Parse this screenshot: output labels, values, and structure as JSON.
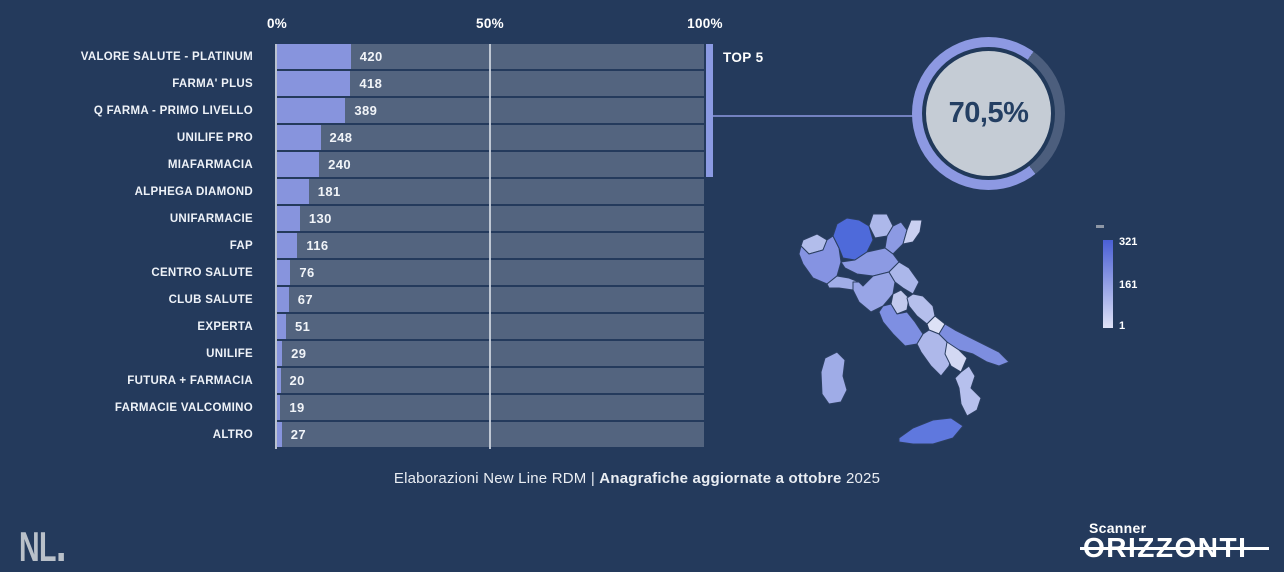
{
  "page": {
    "background": "#243a5c"
  },
  "colors": {
    "bar_fill": "#8794dd",
    "bar_track": "#53647f",
    "gridline": "#cbd2dd",
    "accent_periwinkle": "#8b9ae3",
    "donut_remainder": "#4c5e7d",
    "donut_inner": "#c5ccd5",
    "donut_text": "#243f63"
  },
  "chart_data": [
    {
      "type": "bar",
      "orientation": "horizontal",
      "categories": [
        "VALORE SALUTE - PLATINUM",
        "FARMA' PLUS",
        "Q FARMA - PRIMO LIVELLO",
        "UNILIFE PRO",
        "MIAFARMACIA",
        "ALPHEGA DIAMOND",
        "UNIFARMACIE",
        "FAP",
        "CENTRO SALUTE",
        "CLUB SALUTE",
        "EXPERTA",
        "UNILIFE",
        "FUTURA + FARMACIA",
        "FARMACIE VALCOMINO",
        "ALTRO"
      ],
      "values": [
        420,
        418,
        389,
        248,
        240,
        181,
        130,
        116,
        76,
        67,
        51,
        29,
        20,
        19,
        27
      ],
      "x_axis": {
        "unit": "percent-of-total",
        "range": [
          0,
          100
        ],
        "ticks": [
          "0%",
          "50%",
          "100%"
        ],
        "gridlines_pct": [
          0,
          50
        ]
      },
      "annotation": "TOP 5"
    },
    {
      "type": "pie",
      "style": "donut",
      "values": [
        {
          "name": "TOP 5",
          "value": 70.5
        },
        {
          "name": "remainder",
          "value": 29.5
        }
      ],
      "center_label": "70,5%",
      "remainder_start_deg": 36
    },
    {
      "type": "heatmap",
      "style": "choropleth-italy",
      "legend": {
        "labels": [
          "321",
          "161",
          "1"
        ],
        "null_marker": "-"
      },
      "regions": [
        {
          "id": "valle-daosta",
          "color": "#b2bdeb"
        },
        {
          "id": "piemonte",
          "color": "#8593e2"
        },
        {
          "id": "lombardia",
          "color": "#4e6ada"
        },
        {
          "id": "trentino-alto-adige",
          "color": "#adb8ea"
        },
        {
          "id": "veneto",
          "color": "#8c9ae3"
        },
        {
          "id": "friuli-venezia-giulia",
          "color": "#cad0f1"
        },
        {
          "id": "liguria",
          "color": "#a0ade7"
        },
        {
          "id": "emilia-romagna",
          "color": "#8c9ae3"
        },
        {
          "id": "toscana",
          "color": "#98a5e6"
        },
        {
          "id": "marche",
          "color": "#abb7ea"
        },
        {
          "id": "umbria",
          "color": "#c2caee"
        },
        {
          "id": "lazio",
          "color": "#7e8fe2"
        },
        {
          "id": "abruzzo",
          "color": "#b5bfec"
        },
        {
          "id": "molise",
          "color": "#dde1f6"
        },
        {
          "id": "campania",
          "color": "#aeb8ea"
        },
        {
          "id": "puglia",
          "color": "#7d8ee0"
        },
        {
          "id": "basilicata",
          "color": "#d3d8f3"
        },
        {
          "id": "calabria",
          "color": "#b6c0ed"
        },
        {
          "id": "sicilia",
          "color": "#5f78de"
        },
        {
          "id": "sardegna",
          "color": "#9face7"
        }
      ]
    }
  ],
  "footer": {
    "prefix": "Elaborazioni New Line RDM | ",
    "bold": "Anagrafiche aggiornate a ottobre",
    "suffix": " 2025"
  },
  "logos": {
    "nl": "NL",
    "scanner_top": "Scanner",
    "scanner_main": "ORIZZONTI"
  }
}
